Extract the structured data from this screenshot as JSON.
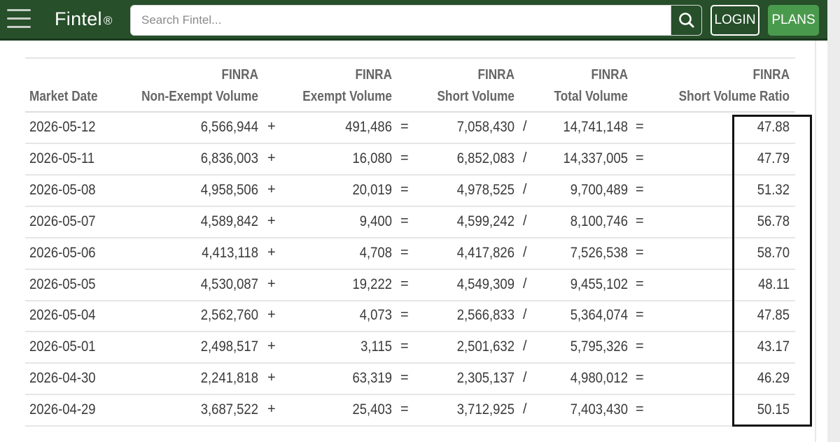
{
  "header": {
    "brand": "Fintel",
    "brand_mark": "®",
    "search_placeholder": "Search Fintel...",
    "login_label": "LOGIN",
    "plans_label": "PLANS"
  },
  "table": {
    "columns": [
      {
        "line1": "",
        "line2": "Market Date"
      },
      {
        "line1": "FINRA",
        "line2": "Non-Exempt Volume"
      },
      {
        "line1": "FINRA",
        "line2": "Exempt Volume"
      },
      {
        "line1": "FINRA",
        "line2": "Short Volume"
      },
      {
        "line1": "FINRA",
        "line2": "Total Volume"
      },
      {
        "line1": "FINRA",
        "line2": "Short Volume Ratio"
      }
    ],
    "operators": {
      "plus": "+",
      "equals": "=",
      "divide": "/"
    },
    "rows": [
      {
        "date": "2026-05-12",
        "non_exempt": "6,566,944",
        "exempt": "491,486",
        "short": "7,058,430",
        "total": "14,741,148",
        "ratio": "47.88"
      },
      {
        "date": "2026-05-11",
        "non_exempt": "6,836,003",
        "exempt": "16,080",
        "short": "6,852,083",
        "total": "14,337,005",
        "ratio": "47.79"
      },
      {
        "date": "2026-05-08",
        "non_exempt": "4,958,506",
        "exempt": "20,019",
        "short": "4,978,525",
        "total": "9,700,489",
        "ratio": "51.32"
      },
      {
        "date": "2026-05-07",
        "non_exempt": "4,589,842",
        "exempt": "9,400",
        "short": "4,599,242",
        "total": "8,100,746",
        "ratio": "56.78"
      },
      {
        "date": "2026-05-06",
        "non_exempt": "4,413,118",
        "exempt": "4,708",
        "short": "4,417,826",
        "total": "7,526,538",
        "ratio": "58.70"
      },
      {
        "date": "2026-05-05",
        "non_exempt": "4,530,087",
        "exempt": "19,222",
        "short": "4,549,309",
        "total": "9,455,102",
        "ratio": "48.11"
      },
      {
        "date": "2026-05-04",
        "non_exempt": "2,562,760",
        "exempt": "4,073",
        "short": "2,566,833",
        "total": "5,364,074",
        "ratio": "47.85"
      },
      {
        "date": "2026-05-01",
        "non_exempt": "2,498,517",
        "exempt": "3,115",
        "short": "2,501,632",
        "total": "5,795,326",
        "ratio": "43.17"
      },
      {
        "date": "2026-04-30",
        "non_exempt": "2,241,818",
        "exempt": "63,319",
        "short": "2,305,137",
        "total": "4,980,012",
        "ratio": "46.29"
      },
      {
        "date": "2026-04-29",
        "non_exempt": "3,687,522",
        "exempt": "25,403",
        "short": "3,712,925",
        "total": "7,403,430",
        "ratio": "50.15"
      }
    ]
  },
  "icons": {
    "menu": "hamburger-menu-icon",
    "search": "search-icon"
  },
  "colors": {
    "header_bg": "#264f2a",
    "plans_bg": "#4a9a4d",
    "highlight_border": "#111111"
  }
}
